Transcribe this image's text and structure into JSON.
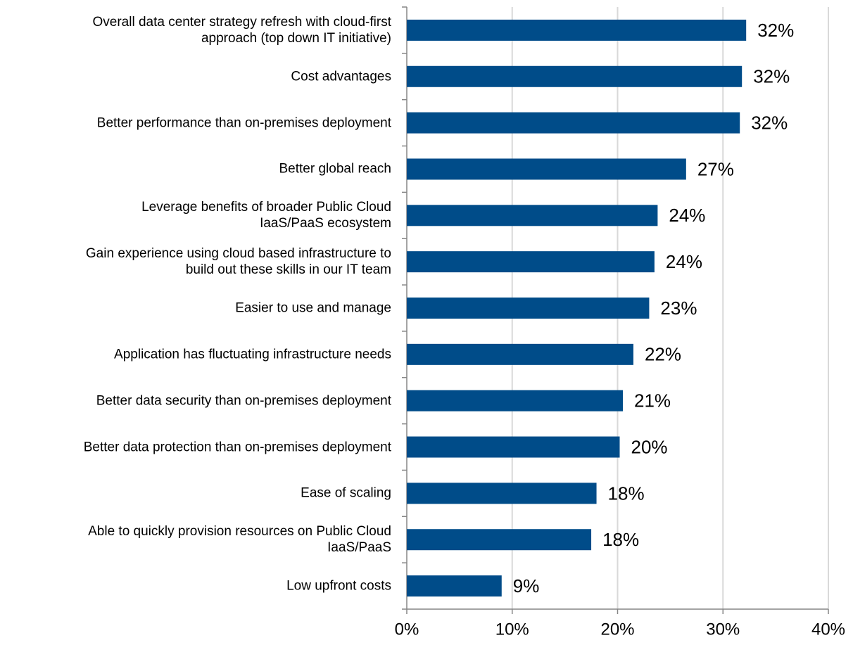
{
  "chart_data": {
    "type": "bar",
    "orientation": "horizontal",
    "categories": [
      "Overall data center strategy refresh with cloud-first\napproach (top down IT initiative)",
      "Cost advantages",
      "Better performance than on-premises deployment",
      "Better global reach",
      "Leverage benefits of broader Public Cloud\nIaaS/PaaS ecosystem",
      "Gain experience using cloud based infrastructure to\nbuild out these skills in our IT team",
      "Easier to use and manage",
      "Application has fluctuating infrastructure needs",
      "Better data security than on-premises deployment",
      "Better data protection than on-premises deployment",
      "Ease of scaling",
      "Able to quickly provision resources on Public Cloud\nIaaS/PaaS",
      "Low upfront costs"
    ],
    "values": [
      32.2,
      31.8,
      31.6,
      26.5,
      23.8,
      23.5,
      23.0,
      21.5,
      20.5,
      20.2,
      18.0,
      17.5,
      9.0
    ],
    "value_labels": [
      "32%",
      "32%",
      "32%",
      "27%",
      "24%",
      "24%",
      "23%",
      "22%",
      "21%",
      "20%",
      "18%",
      "18%",
      "9%"
    ],
    "color": "#004c89",
    "xlim": [
      0,
      40
    ],
    "xticks": [
      {
        "value": 0,
        "label": "0%"
      },
      {
        "value": 10,
        "label": "10%"
      },
      {
        "value": 20,
        "label": "20%"
      },
      {
        "value": 30,
        "label": "30%"
      },
      {
        "value": 40,
        "label": "40%"
      }
    ],
    "grid": true
  }
}
